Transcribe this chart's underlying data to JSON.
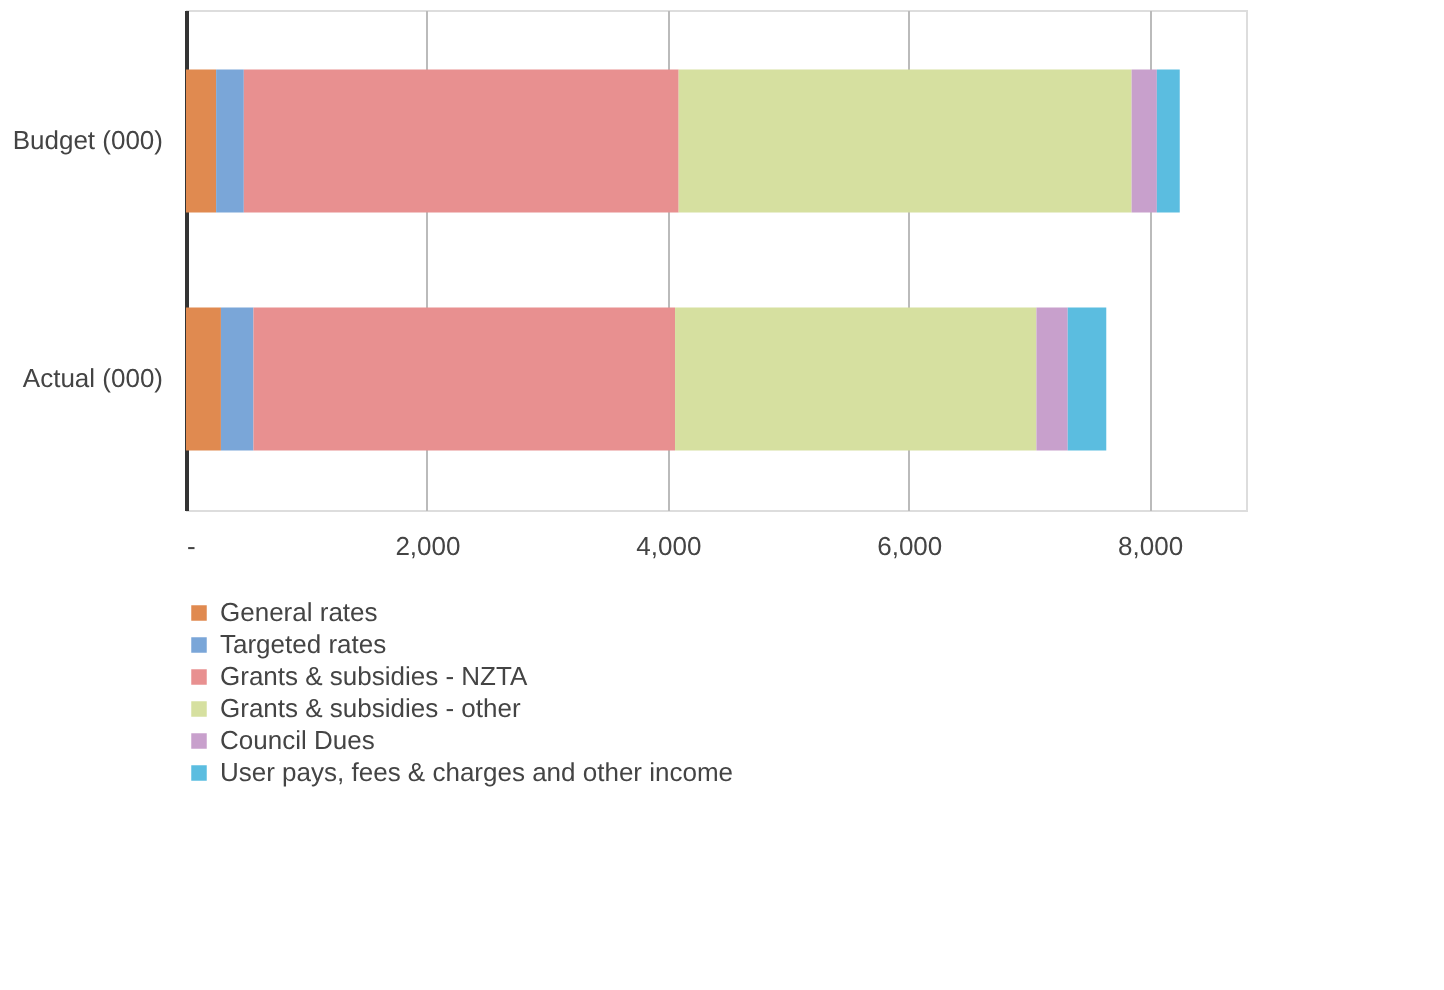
{
  "chart_data": {
    "type": "bar",
    "orientation": "horizontal",
    "stacked": true,
    "categories": [
      "Budget (000)",
      "Actual (000)"
    ],
    "series": [
      {
        "name": "General rates",
        "color": "#e08a50",
        "values": [
          250,
          290
        ]
      },
      {
        "name": "Targeted rates",
        "color": "#7aa6d8",
        "values": [
          230,
          270
        ]
      },
      {
        "name": "Grants & subsidies - NZTA",
        "color": "#e89090",
        "values": [
          3610,
          3500
        ]
      },
      {
        "name": "Grants & subsidies - other",
        "color": "#d6e0a0",
        "values": [
          3760,
          3000
        ]
      },
      {
        "name": "Council Dues",
        "color": "#c8a0cc",
        "values": [
          210,
          260
        ]
      },
      {
        "name": "User pays, fees & charges and other income",
        "color": "#5bbde0",
        "values": [
          190,
          320
        ]
      }
    ],
    "xlim": [
      0,
      8800
    ],
    "xticks": [
      {
        "value": 0,
        "label": "-"
      },
      {
        "value": 2000,
        "label": "2,000"
      },
      {
        "value": 4000,
        "label": "4,000"
      },
      {
        "value": 6000,
        "label": "6,000"
      },
      {
        "value": 8000,
        "label": "8,000"
      }
    ],
    "grid": "x",
    "legend": "bottom"
  }
}
